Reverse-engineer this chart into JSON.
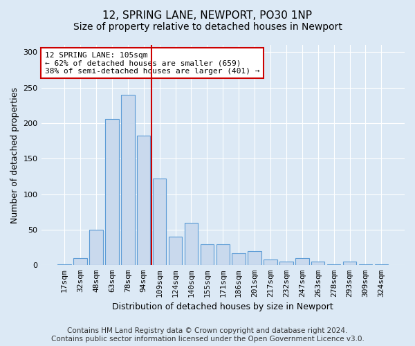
{
  "title": "12, SPRING LANE, NEWPORT, PO30 1NP",
  "subtitle": "Size of property relative to detached houses in Newport",
  "xlabel": "Distribution of detached houses by size in Newport",
  "ylabel": "Number of detached properties",
  "categories": [
    "17sqm",
    "32sqm",
    "48sqm",
    "63sqm",
    "78sqm",
    "94sqm",
    "109sqm",
    "124sqm",
    "140sqm",
    "155sqm",
    "171sqm",
    "186sqm",
    "201sqm",
    "217sqm",
    "232sqm",
    "247sqm",
    "263sqm",
    "278sqm",
    "293sqm",
    "309sqm",
    "324sqm"
  ],
  "values": [
    1,
    10,
    50,
    206,
    240,
    182,
    122,
    40,
    60,
    30,
    30,
    17,
    20,
    8,
    5,
    10,
    5,
    1,
    5,
    1,
    1
  ],
  "bar_color": "#c9d9ed",
  "bar_edge_color": "#5b9bd5",
  "vline_color": "#cc0000",
  "vline_x": 6.0,
  "annotation_text": "12 SPRING LANE: 105sqm\n← 62% of detached houses are smaller (659)\n38% of semi-detached houses are larger (401) →",
  "annotation_box_color": "#ffffff",
  "annotation_box_edge_color": "#cc0000",
  "ylim": [
    0,
    310
  ],
  "yticks": [
    0,
    50,
    100,
    150,
    200,
    250,
    300
  ],
  "footer_text": "Contains HM Land Registry data © Crown copyright and database right 2024.\nContains public sector information licensed under the Open Government Licence v3.0.",
  "bg_color": "#dce9f5",
  "plot_bg_color": "#dce9f5",
  "title_fontsize": 11,
  "subtitle_fontsize": 10,
  "xlabel_fontsize": 9,
  "ylabel_fontsize": 9,
  "tick_fontsize": 8,
  "annotation_fontsize": 8,
  "footer_fontsize": 7.5
}
